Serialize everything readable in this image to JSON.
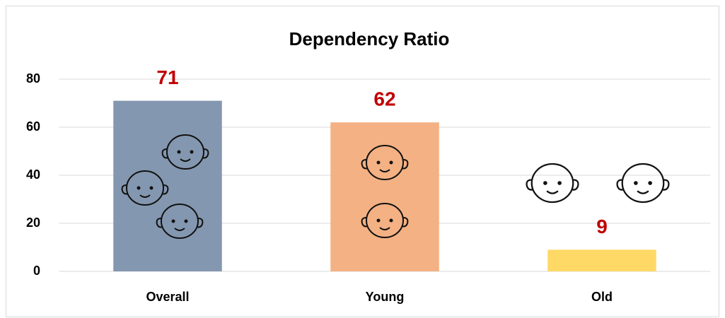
{
  "chart_data": {
    "type": "bar",
    "title": "Dependency Ratio",
    "categories": [
      "Overall",
      "Young",
      "Old"
    ],
    "values": [
      71,
      62,
      9
    ],
    "colors": [
      "#8497b0",
      "#f4b183",
      "#ffd966"
    ],
    "value_color": "#c00000",
    "ylim": [
      0,
      80
    ],
    "yticks": [
      0,
      20,
      40,
      60,
      80
    ],
    "grid": true
  }
}
